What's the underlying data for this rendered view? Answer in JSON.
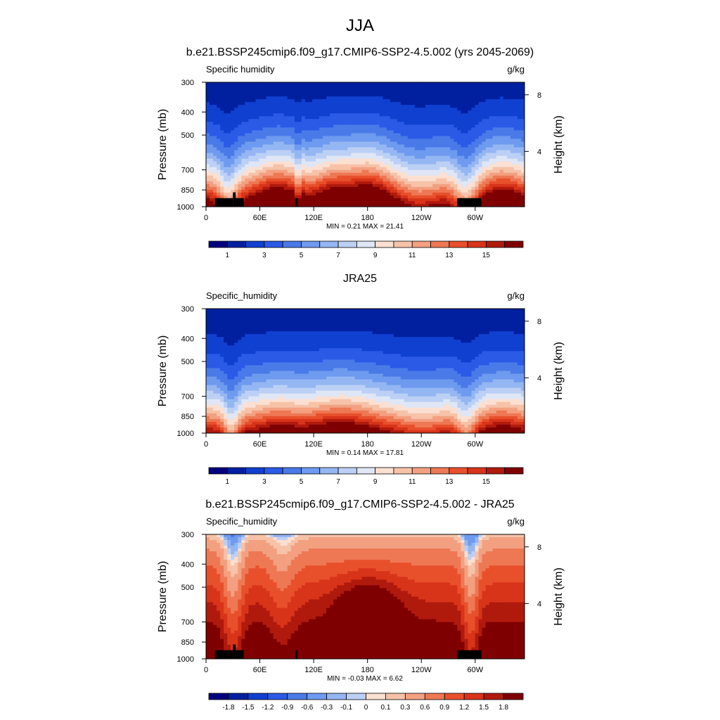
{
  "page_title": "JJA",
  "chart_data": [
    {
      "type": "heatmap",
      "title": "b.e21.BSSP245cmip6.f09_g17.CMIP6-SSP2-4.5.002 (yrs 2045-2069)",
      "variable": "Specific humidity",
      "units": "g/kg",
      "ylabel": "Pressure (mb)",
      "ylabel_right": "Height (km)",
      "x_ticks": [
        "0",
        "60E",
        "120E",
        "180",
        "120W",
        "60W"
      ],
      "x_tick_values": [
        0,
        60,
        120,
        180,
        240,
        300
      ],
      "xlim": [
        0,
        355
      ],
      "y_ticks": [
        "300",
        "400",
        "500",
        "700",
        "850",
        "1000"
      ],
      "y_tick_values": [
        300,
        400,
        500,
        700,
        850,
        1000
      ],
      "ylim": [
        1000,
        300
      ],
      "y_scale": "log",
      "height_ticks": [
        "8",
        "4"
      ],
      "height_tick_values": [
        8,
        4
      ],
      "stats": "MIN =   0.21  MAX =  21.41",
      "colorbar_labels": [
        "1",
        "3",
        "5",
        "7",
        "9",
        "11",
        "13",
        "15"
      ],
      "colorbar_label_positions": [
        1,
        3,
        5,
        7,
        9,
        11,
        13,
        15
      ],
      "levels": [
        0,
        1,
        2,
        3,
        4,
        5,
        6,
        7,
        8,
        9,
        10,
        11,
        12,
        13,
        14,
        15,
        16
      ],
      "colors": [
        "#00007f",
        "#0020a0",
        "#1040d0",
        "#2a5ae6",
        "#4a7ae8",
        "#6e9aef",
        "#94b6f2",
        "#bcd0f5",
        "#dfe6f5",
        "#fbe0d2",
        "#f6c2a8",
        "#f3a081",
        "#ee7854",
        "#e8502c",
        "#d8341a",
        "#b01a0d",
        "#7f0000"
      ],
      "topography": [
        [
          10,
          30,
          920
        ],
        [
          30,
          33,
          870
        ],
        [
          33,
          42,
          920
        ],
        [
          100,
          102,
          920
        ],
        [
          280,
          307,
          920
        ]
      ]
    },
    {
      "type": "heatmap",
      "title": "JRA25",
      "variable": "Specific_humidity",
      "units": "g/kg",
      "ylabel": "Pressure (mb)",
      "ylabel_right": "Height (km)",
      "x_ticks": [
        "0",
        "60E",
        "120E",
        "180",
        "120W",
        "60W"
      ],
      "x_tick_values": [
        0,
        60,
        120,
        180,
        240,
        300
      ],
      "xlim": [
        0,
        355
      ],
      "y_ticks": [
        "300",
        "400",
        "500",
        "700",
        "850",
        "1000"
      ],
      "y_tick_values": [
        300,
        400,
        500,
        700,
        850,
        1000
      ],
      "ylim": [
        1000,
        300
      ],
      "y_scale": "log",
      "height_ticks": [
        "8",
        "4"
      ],
      "height_tick_values": [
        8,
        4
      ],
      "stats": "MIN =   0.14  MAX =  17.81",
      "colorbar_labels": [
        "1",
        "3",
        "5",
        "7",
        "9",
        "11",
        "13",
        "15"
      ],
      "colorbar_label_positions": [
        1,
        3,
        5,
        7,
        9,
        11,
        13,
        15
      ],
      "levels": [
        0,
        1,
        2,
        3,
        4,
        5,
        6,
        7,
        8,
        9,
        10,
        11,
        12,
        13,
        14,
        15,
        16
      ],
      "colors": [
        "#00007f",
        "#0020a0",
        "#1040d0",
        "#2a5ae6",
        "#4a7ae8",
        "#6e9aef",
        "#94b6f2",
        "#bcd0f5",
        "#dfe6f5",
        "#fbe0d2",
        "#f6c2a8",
        "#f3a081",
        "#ee7854",
        "#e8502c",
        "#d8341a",
        "#b01a0d",
        "#7f0000"
      ],
      "topography": []
    },
    {
      "type": "heatmap",
      "title": "b.e21.BSSP245cmip6.f09_g17.CMIP6-SSP2-4.5.002 - JRA25",
      "variable": "Specific_humidity",
      "units": "g/kg",
      "ylabel": "Pressure (mb)",
      "ylabel_right": "Height (km)",
      "x_ticks": [
        "0",
        "60E",
        "120E",
        "180",
        "120W",
        "60W"
      ],
      "x_tick_values": [
        0,
        60,
        120,
        180,
        240,
        300
      ],
      "xlim": [
        0,
        355
      ],
      "y_ticks": [
        "300",
        "400",
        "500",
        "700",
        "850",
        "1000"
      ],
      "y_tick_values": [
        300,
        400,
        500,
        700,
        850,
        1000
      ],
      "ylim": [
        1000,
        300
      ],
      "y_scale": "log",
      "height_ticks": [
        "8",
        "4"
      ],
      "height_tick_values": [
        8,
        4
      ],
      "stats": "MIN =  -0.03  MAX =   6.62",
      "colorbar_labels": [
        "-1.8",
        "-1.5",
        "-1.2",
        "-0.9",
        "-0.6",
        "-0.3",
        "-0.1",
        "0",
        "0.1",
        "0.3",
        "0.6",
        "0.9",
        "1.2",
        "1.5",
        "1.8"
      ],
      "colorbar_label_positions": [
        1,
        2,
        3,
        4,
        5,
        6,
        7,
        8,
        9,
        10,
        11,
        12,
        13,
        14,
        15
      ],
      "levels": [
        -1.8,
        -1.5,
        -1.2,
        -0.9,
        -0.6,
        -0.3,
        -0.1,
        0,
        0.1,
        0.3,
        0.6,
        0.9,
        1.2,
        1.5,
        1.8
      ],
      "colors": [
        "#00007f",
        "#0020a0",
        "#1040d0",
        "#2a5ae6",
        "#4a7ae8",
        "#6e9aef",
        "#94b6f2",
        "#bcd0f5",
        "#fbe0d2",
        "#f6c2a8",
        "#f3a081",
        "#ee7854",
        "#e8502c",
        "#d8341a",
        "#b01a0d",
        "#7f0000"
      ],
      "topography": [
        [
          10,
          30,
          920
        ],
        [
          30,
          33,
          870
        ],
        [
          33,
          42,
          920
        ],
        [
          100,
          102,
          920
        ],
        [
          280,
          307,
          920
        ]
      ]
    }
  ]
}
